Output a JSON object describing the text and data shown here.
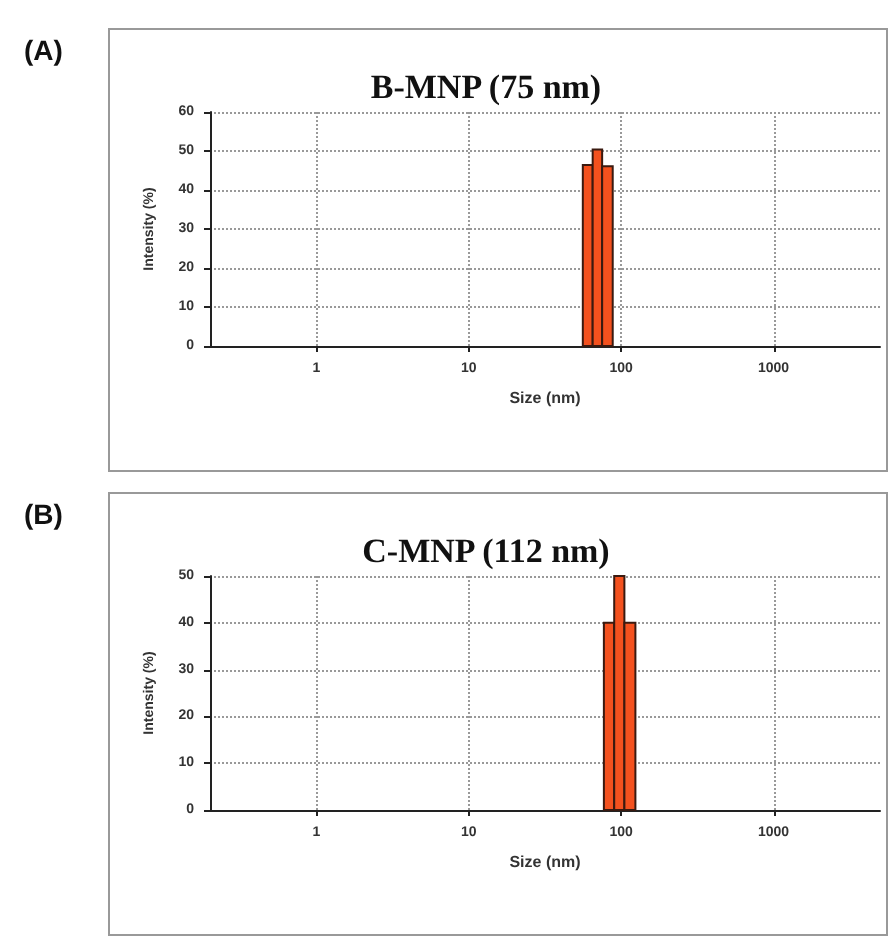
{
  "chart_data": [
    {
      "type": "histogram",
      "title": "B-MNP (75 nm)",
      "xlabel": "Size (nm)",
      "ylabel": "Intensity (%)",
      "annotations": [
        "(A)"
      ],
      "bins": [
        56,
        65,
        75,
        88
      ],
      "values": [
        46.4,
        50.4,
        46.1
      ],
      "color": "#f4511e",
      "log": "x",
      "xlim": [
        0.2,
        5000
      ],
      "xticks": [
        1,
        10,
        100,
        1000
      ],
      "ylim": [
        0,
        60
      ],
      "yticks": [
        0,
        10,
        20,
        30,
        40,
        50,
        60
      ],
      "grid": true
    },
    {
      "type": "histogram",
      "title": "C-MNP (112 nm)",
      "xlabel": "Size (nm)",
      "ylabel": "Intensity (%)",
      "annotations": [
        "(B)"
      ],
      "bins": [
        77,
        90,
        105,
        124
      ],
      "values": [
        40,
        50,
        40
      ],
      "color": "#f4511e",
      "log": "x",
      "xlim": [
        0.2,
        5000
      ],
      "xticks": [
        1,
        10,
        100,
        1000
      ],
      "ylim": [
        0,
        50
      ],
      "yticks": [
        0,
        10,
        20,
        30,
        40,
        50
      ],
      "grid": true
    }
  ]
}
